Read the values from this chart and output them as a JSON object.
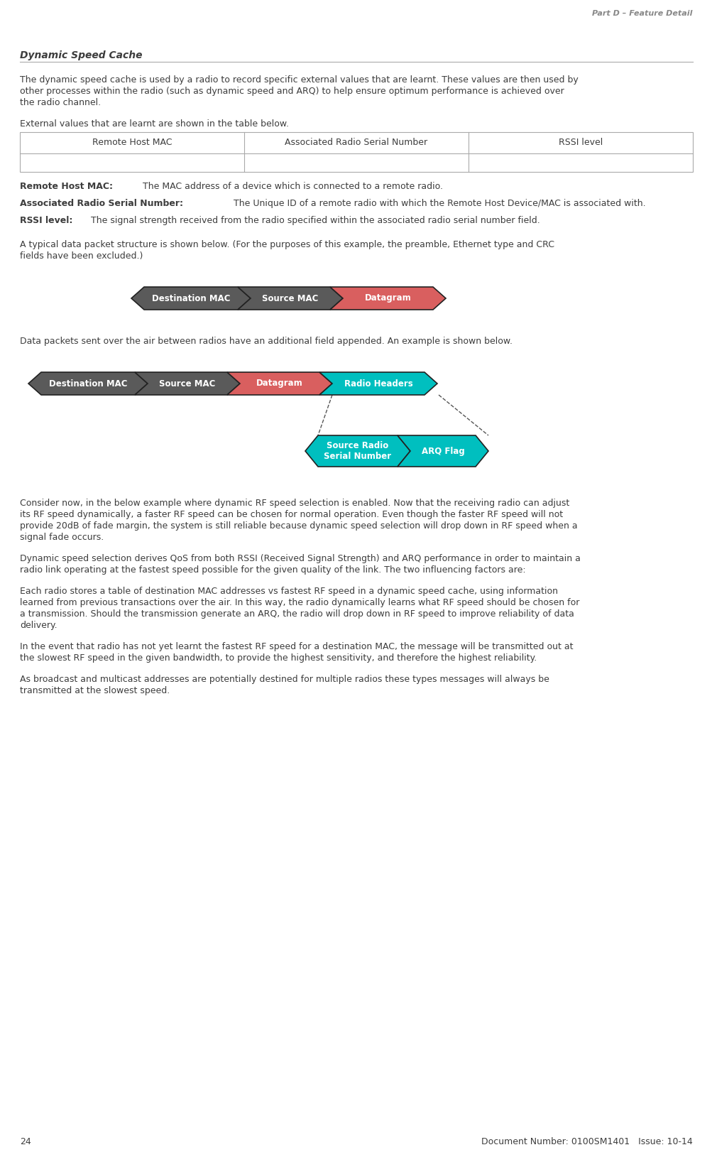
{
  "page_number": "24",
  "doc_number": "Document Number: 0100SM1401   Issue: 10-14",
  "header_right": "Part D – Feature Detail",
  "section_title": "Dynamic Speed Cache",
  "para1_lines": [
    "The dynamic speed cache is used by a radio to record specific external values that are learnt. These values are then used by",
    "other processes within the radio (such as dynamic speed and ARQ) to help ensure optimum performance is achieved over",
    "the radio channel."
  ],
  "para2": "External values that are learnt are shown in the table below.",
  "table_headers": [
    "Remote Host MAC",
    "Associated Radio Serial Number",
    "RSSI level"
  ],
  "para3_bold": "Remote Host MAC:",
  "para3_rest": " The MAC address of a device which is connected to a remote radio.",
  "para4_bold": "Associated Radio Serial Number:",
  "para4_rest": " The Unique ID of a remote radio with which the Remote Host Device/MAC is associated with.",
  "para5_bold": "RSSI level:",
  "para5_rest": " The signal strength received from the radio specified within the associated radio serial number field.",
  "para6_lines": [
    "A typical data packet structure is shown below. (For the purposes of this example, the preamble, Ethernet type and CRC",
    "fields have been excluded.)"
  ],
  "diagram1_fields": [
    "Destination MAC",
    "Source MAC",
    "Datagram"
  ],
  "diagram1_colors": [
    "#5A5A5A",
    "#5A5A5A",
    "#D95F5F"
  ],
  "diagram1_text_colors": [
    "#FFFFFF",
    "#FFFFFF",
    "#FFFFFF"
  ],
  "para7": "Data packets sent over the air between radios have an additional field appended. An example is shown below.",
  "diagram2_fields": [
    "Destination MAC",
    "Source MAC",
    "Datagram",
    "Radio Headers"
  ],
  "diagram2_colors": [
    "#5A5A5A",
    "#5A5A5A",
    "#D95F5F",
    "#00BFBF"
  ],
  "diagram2_text_colors": [
    "#FFFFFF",
    "#FFFFFF",
    "#FFFFFF",
    "#FFFFFF"
  ],
  "diagram2_sub_fields": [
    "Source Radio\nSerial Number",
    "ARQ Flag"
  ],
  "diagram2_sub_colors": [
    "#00BFBF",
    "#00BFBF"
  ],
  "diagram2_sub_text_colors": [
    "#FFFFFF",
    "#FFFFFF"
  ],
  "para8_lines": [
    "Consider now, in the below example where dynamic RF speed selection is enabled. Now that the receiving radio can adjust",
    "its RF speed dynamically, a faster RF speed can be chosen for normal operation. Even though the faster RF speed will not",
    "provide 20dB of fade margin, the system is still reliable because dynamic speed selection will drop down in RF speed when a",
    "signal fade occurs."
  ],
  "para9_lines": [
    "Dynamic speed selection derives QoS from both RSSI (Received Signal Strength) and ARQ performance in order to maintain a",
    "radio link operating at the fastest speed possible for the given quality of the link. The two influencing factors are:"
  ],
  "para10_lines": [
    "Each radio stores a table of destination MAC addresses vs fastest RF speed in a dynamic speed cache, using information",
    "learned from previous transactions over the air. In this way, the radio dynamically learns what RF speed should be chosen for",
    "a transmission. Should the transmission generate an ARQ, the radio will drop down in RF speed to improve reliability of data",
    "delivery."
  ],
  "para11_lines": [
    "In the event that radio has not yet learnt the fastest RF speed for a destination MAC, the message will be transmitted out at",
    "the slowest RF speed in the given bandwidth, to provide the highest sensitivity, and therefore the highest reliability."
  ],
  "para12_lines": [
    "As broadcast and multicast addresses are potentially destined for multiple radios these types messages will always be",
    "transmitted at the slowest speed."
  ],
  "bg_color": "#FFFFFF",
  "text_color": "#3D3D3D",
  "header_color": "#888888",
  "title_color": "#3D3D3D",
  "line_color": "#AAAAAA",
  "table_border_color": "#AAAAAA",
  "dashed_line_color": "#555555"
}
